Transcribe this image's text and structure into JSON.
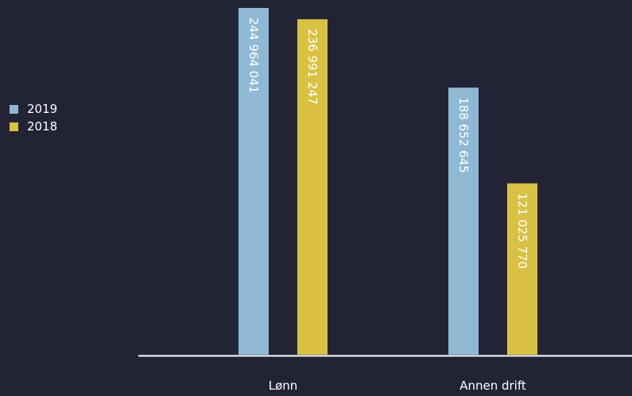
{
  "colors": {
    "background": "#222436",
    "series_2019": "#8fb8d4",
    "series_2018": "#d9c143",
    "axis": "#ffffff",
    "text": "#ffffff"
  },
  "chart_data": {
    "type": "bar",
    "title": "",
    "xlabel": "",
    "ylabel": "",
    "categories": [
      "Lønn",
      "Annen drift"
    ],
    "series": [
      {
        "name": "2019",
        "values": [
          244964041,
          188652645
        ],
        "labels": [
          "244 964 041",
          "188 652 645"
        ]
      },
      {
        "name": "2018",
        "values": [
          236991247,
          121025770
        ],
        "labels": [
          "236 991 247",
          "121 025 770"
        ]
      }
    ],
    "ylim": [
      0,
      244964041
    ],
    "grid": false,
    "legend": "left",
    "data_labels": "inside-top-rotated"
  }
}
